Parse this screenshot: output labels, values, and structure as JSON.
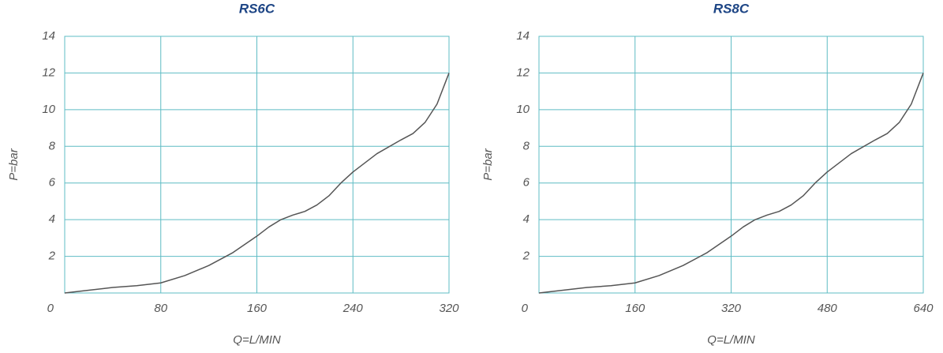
{
  "chart_data": [
    {
      "type": "line",
      "title": "RS6C",
      "xlabel": "Q=L/MIN",
      "ylabel": "P=bar",
      "x": [
        0,
        20,
        40,
        60,
        80,
        100,
        120,
        140,
        160,
        170,
        180,
        190,
        200,
        210,
        220,
        230,
        240,
        260,
        280,
        290,
        300,
        310,
        320
      ],
      "series": [
        {
          "color": "#555555",
          "values": [
            0,
            0.15,
            0.3,
            0.4,
            0.55,
            0.95,
            1.5,
            2.2,
            3.1,
            3.6,
            4.0,
            4.25,
            4.45,
            4.8,
            5.3,
            6.0,
            6.6,
            7.6,
            8.35,
            8.7,
            9.3,
            10.3,
            12
          ]
        }
      ],
      "xlim": [
        0,
        320
      ],
      "xticks": [
        0,
        80,
        160,
        240,
        320
      ],
      "ylim": [
        0,
        14
      ],
      "yticks": [
        2,
        4,
        6,
        8,
        10,
        12,
        14
      ],
      "grid": true
    },
    {
      "type": "line",
      "title": "RS8C",
      "xlabel": "Q=L/MIN",
      "ylabel": "P=bar",
      "x": [
        0,
        40,
        80,
        120,
        160,
        200,
        240,
        280,
        320,
        340,
        360,
        380,
        400,
        420,
        440,
        460,
        480,
        520,
        560,
        580,
        600,
        620,
        640
      ],
      "series": [
        {
          "color": "#555555",
          "values": [
            0,
            0.15,
            0.3,
            0.4,
            0.55,
            0.95,
            1.5,
            2.2,
            3.1,
            3.6,
            4.0,
            4.25,
            4.45,
            4.8,
            5.3,
            6.0,
            6.6,
            7.6,
            8.35,
            8.7,
            9.3,
            10.3,
            12
          ]
        }
      ],
      "xlim": [
        0,
        640
      ],
      "xticks": [
        0,
        160,
        320,
        480,
        640
      ],
      "ylim": [
        0,
        14
      ],
      "yticks": [
        2,
        4,
        6,
        8,
        10,
        12,
        14
      ],
      "grid": true
    }
  ]
}
